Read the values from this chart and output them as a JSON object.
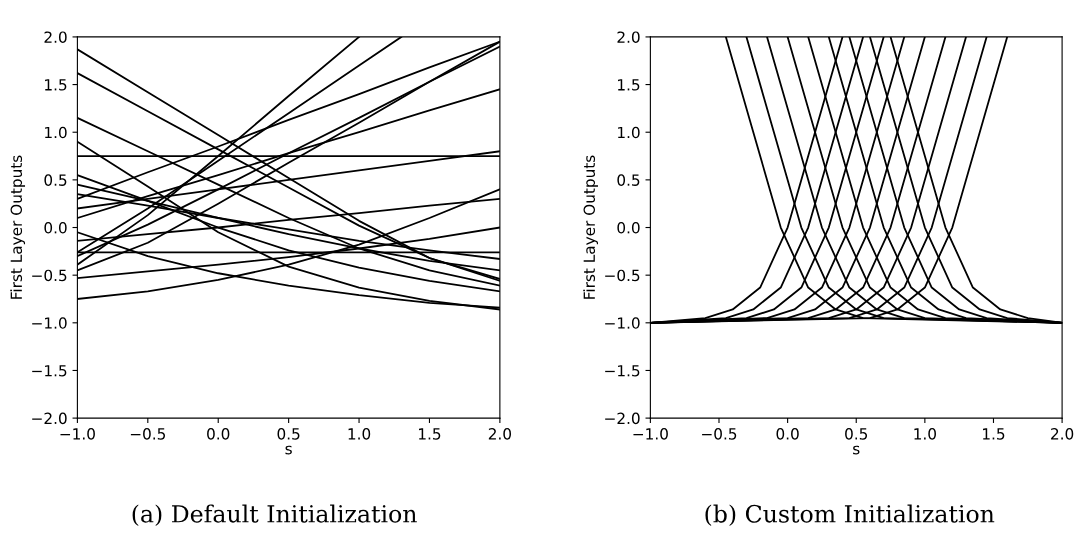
{
  "chart_data": [
    {
      "type": "line",
      "title": "(a) Default Initialization",
      "xlabel": "s",
      "ylabel": "First Layer Outputs",
      "grid": false,
      "marker": "none",
      "line_style": "solid",
      "xlim": [
        -1.0,
        2.0
      ],
      "ylim": [
        -2.0,
        2.0
      ],
      "xticks": [
        {
          "value": -1.0,
          "label": "−1.0"
        },
        {
          "value": -0.5,
          "label": "−0.5"
        },
        {
          "value": 0.0,
          "label": "0.0"
        },
        {
          "value": 0.5,
          "label": "0.5"
        },
        {
          "value": 1.0,
          "label": "1.0"
        },
        {
          "value": 1.5,
          "label": "1.5"
        },
        {
          "value": 2.0,
          "label": "2.0"
        }
      ],
      "yticks": [
        {
          "value": -2.0,
          "label": "−2.0"
        },
        {
          "value": -1.5,
          "label": "−1.5"
        },
        {
          "value": -1.0,
          "label": "−1.0"
        },
        {
          "value": -0.5,
          "label": "−0.5"
        },
        {
          "value": 0.0,
          "label": "0.0"
        },
        {
          "value": 0.5,
          "label": "0.5"
        },
        {
          "value": 1.0,
          "label": "1.0"
        },
        {
          "value": 1.5,
          "label": "1.5"
        },
        {
          "value": 2.0,
          "label": "2.0"
        }
      ],
      "series": [
        {
          "color": "#000000",
          "x": [
            -1,
            -0.5,
            0,
            0.5,
            1,
            1.5,
            2
          ],
          "values": [
            1.87,
            1.42,
            0.97,
            0.52,
            0.07,
            -0.32,
            -0.56
          ]
        },
        {
          "color": "#000000",
          "x": [
            -1,
            -0.5,
            0,
            0.5,
            1,
            1.3
          ],
          "values": [
            -0.26,
            0.2,
            0.7,
            1.2,
            1.7,
            2.0
          ]
        },
        {
          "color": "#000000",
          "x": [
            -1,
            -0.5,
            0,
            0.5,
            1,
            1.5,
            2
          ],
          "values": [
            1.62,
            1.22,
            0.82,
            0.42,
            0.02,
            -0.32,
            -0.54
          ]
        },
        {
          "color": "#000000",
          "x": [
            -1,
            -0.5,
            0,
            0.5,
            1,
            1.5,
            2
          ],
          "values": [
            -0.45,
            -0.16,
            0.25,
            0.68,
            1.1,
            1.53,
            1.95
          ]
        },
        {
          "color": "#000000",
          "x": [
            -1,
            2
          ],
          "values": [
            0.75,
            0.75
          ]
        },
        {
          "color": "#000000",
          "x": [
            -1,
            2
          ],
          "values": [
            -0.26,
            -0.26
          ]
        },
        {
          "color": "#000000",
          "x": [
            -1,
            -0.5,
            0,
            0.5,
            1,
            1.5,
            2
          ],
          "values": [
            1.15,
            0.8,
            0.45,
            0.1,
            -0.22,
            -0.45,
            -0.61
          ]
        },
        {
          "color": "#000000",
          "x": [
            -1,
            -0.5,
            0,
            0.5,
            1,
            1.5,
            2
          ],
          "values": [
            0.9,
            0.43,
            -0.05,
            -0.41,
            -0.63,
            -0.77,
            -0.86
          ]
        },
        {
          "color": "#000000",
          "x": [
            -1,
            -0.5,
            0,
            0.5,
            1,
            1.5,
            2
          ],
          "values": [
            -0.53,
            -0.46,
            -0.39,
            -0.31,
            -0.22,
            -0.12,
            0.0
          ]
        },
        {
          "color": "#000000",
          "x": [
            -1,
            -0.5,
            0,
            0.5,
            1,
            1.5,
            2
          ],
          "values": [
            0.3,
            0.58,
            0.85,
            1.13,
            1.4,
            1.68,
            1.95
          ]
        },
        {
          "color": "#000000",
          "x": [
            -1,
            -0.5,
            0,
            0.5,
            1,
            1.5,
            2
          ],
          "values": [
            0.1,
            0.33,
            0.55,
            0.78,
            1.0,
            1.23,
            1.45
          ]
        },
        {
          "color": "#000000",
          "x": [
            -1,
            -0.5,
            0,
            0.5,
            1,
            1.5,
            2
          ],
          "values": [
            0.55,
            0.28,
            0.0,
            -0.24,
            -0.42,
            -0.56,
            -0.67
          ]
        },
        {
          "color": "#000000",
          "x": [
            -1,
            -0.5,
            0,
            0.5,
            1,
            1.5,
            2
          ],
          "values": [
            -0.14,
            -0.07,
            0.0,
            0.08,
            0.15,
            0.23,
            0.3
          ]
        },
        {
          "color": "#000000",
          "x": [
            -1,
            -0.5,
            0,
            0.5,
            1,
            1.5,
            2
          ],
          "values": [
            0.45,
            0.28,
            0.1,
            -0.07,
            -0.22,
            -0.35,
            -0.45
          ]
        },
        {
          "color": "#000000",
          "x": [
            -1,
            -0.5,
            0,
            0.5,
            1,
            1.5,
            2
          ],
          "values": [
            -0.75,
            -0.67,
            -0.55,
            -0.39,
            -0.18,
            0.1,
            0.4
          ]
        },
        {
          "color": "#000000",
          "x": [
            -1,
            -0.5,
            0,
            0.5,
            1,
            1.5,
            2
          ],
          "values": [
            -0.05,
            -0.3,
            -0.48,
            -0.61,
            -0.71,
            -0.79,
            -0.84
          ]
        },
        {
          "color": "#000000",
          "x": [
            -1,
            -0.5,
            0,
            0.5,
            1,
            1.5,
            2
          ],
          "values": [
            0.2,
            0.3,
            0.4,
            0.5,
            0.6,
            0.7,
            0.8
          ]
        },
        {
          "color": "#000000",
          "x": [
            -1,
            -0.5,
            0,
            0.5,
            1,
            1.5,
            2
          ],
          "values": [
            -0.3,
            0.03,
            0.4,
            0.78,
            1.15,
            1.53,
            1.9
          ]
        },
        {
          "color": "#000000",
          "x": [
            -1,
            -0.5,
            0,
            0.5,
            1
          ],
          "values": [
            -0.39,
            0.13,
            0.75,
            1.38,
            2.0
          ]
        },
        {
          "color": "#000000",
          "x": [
            -1,
            -0.5,
            0,
            0.5,
            1,
            1.5,
            2
          ],
          "values": [
            0.35,
            0.23,
            0.1,
            -0.02,
            -0.14,
            -0.24,
            -0.33
          ]
        }
      ]
    },
    {
      "type": "line",
      "title": "(b) Custom Initialization",
      "xlabel": "s",
      "ylabel": "First Layer Outputs",
      "grid": false,
      "marker": "none",
      "line_style": "solid",
      "xlim": [
        -1.0,
        2.0
      ],
      "ylim": [
        -2.0,
        2.0
      ],
      "xticks": [
        {
          "value": -1.0,
          "label": "−1.0"
        },
        {
          "value": -0.5,
          "label": "−0.5"
        },
        {
          "value": 0.0,
          "label": "0.0"
        },
        {
          "value": 0.5,
          "label": "0.5"
        },
        {
          "value": 1.0,
          "label": "1.0"
        },
        {
          "value": 1.5,
          "label": "1.5"
        },
        {
          "value": 2.0,
          "label": "2.0"
        }
      ],
      "yticks": [
        {
          "value": -2.0,
          "label": "−2.0"
        },
        {
          "value": -1.5,
          "label": "−1.5"
        },
        {
          "value": -1.0,
          "label": "−1.0"
        },
        {
          "value": -0.5,
          "label": "−0.5"
        },
        {
          "value": 0.0,
          "label": "0.0"
        },
        {
          "value": 0.5,
          "label": "0.5"
        },
        {
          "value": 1.0,
          "label": "1.0"
        },
        {
          "value": 1.5,
          "label": "1.5"
        },
        {
          "value": 2.0,
          "label": "2.0"
        }
      ],
      "series": [
        {
          "color": "#000000",
          "x": [
            -1,
            -0.6,
            -0.4,
            -0.2,
            0.0,
            0.2,
            0.4
          ],
          "values": [
            -1.0,
            -0.95,
            -0.86,
            -0.63,
            0,
            1,
            2
          ]
        },
        {
          "color": "#000000",
          "x": [
            -1,
            -0.45,
            -0.25,
            -0.05,
            0.15,
            0.35,
            0.55
          ],
          "values": [
            -1.0,
            -0.95,
            -0.86,
            -0.63,
            0,
            1,
            2
          ]
        },
        {
          "color": "#000000",
          "x": [
            -1,
            -0.3,
            -0.1,
            0.1,
            0.3,
            0.5,
            0.7
          ],
          "values": [
            -1.0,
            -0.95,
            -0.86,
            -0.63,
            0,
            1,
            2
          ]
        },
        {
          "color": "#000000",
          "x": [
            -1,
            -0.15,
            0.05,
            0.25,
            0.45,
            0.65,
            0.85
          ],
          "values": [
            -1.0,
            -0.95,
            -0.86,
            -0.63,
            0,
            1,
            2
          ]
        },
        {
          "color": "#000000",
          "x": [
            -1,
            0.0,
            0.2,
            0.4,
            0.6,
            0.8,
            1.0
          ],
          "values": [
            -1.0,
            -0.95,
            -0.86,
            -0.63,
            0,
            1,
            2
          ]
        },
        {
          "color": "#000000",
          "x": [
            -1,
            0.15,
            0.35,
            0.55,
            0.75,
            0.95,
            1.15
          ],
          "values": [
            -1.0,
            -0.95,
            -0.86,
            -0.63,
            0,
            1,
            2
          ]
        },
        {
          "color": "#000000",
          "x": [
            -1,
            0.3,
            0.5,
            0.7,
            0.9,
            1.1,
            1.3
          ],
          "values": [
            -1.0,
            -0.95,
            -0.86,
            -0.63,
            0,
            1,
            2
          ]
        },
        {
          "color": "#000000",
          "x": [
            -1,
            0.45,
            0.65,
            0.85,
            1.05,
            1.25,
            1.45
          ],
          "values": [
            -1.0,
            -0.95,
            -0.86,
            -0.63,
            0,
            1,
            2
          ]
        },
        {
          "color": "#000000",
          "x": [
            -1,
            0.6,
            0.8,
            1.0,
            1.2,
            1.4,
            1.6
          ],
          "values": [
            -1.0,
            -0.95,
            -0.86,
            -0.63,
            0,
            1,
            2
          ]
        },
        {
          "color": "#000000",
          "x": [
            -0.45,
            -0.25,
            -0.05,
            0.15,
            0.35,
            0.55,
            2
          ],
          "values": [
            2,
            1,
            0,
            -0.63,
            -0.86,
            -0.95,
            -1.0
          ]
        },
        {
          "color": "#000000",
          "x": [
            -0.3,
            -0.1,
            0.1,
            0.3,
            0.5,
            0.7,
            2
          ],
          "values": [
            2,
            1,
            0,
            -0.63,
            -0.86,
            -0.95,
            -1.0
          ]
        },
        {
          "color": "#000000",
          "x": [
            -0.15,
            0.05,
            0.25,
            0.45,
            0.65,
            0.85,
            2
          ],
          "values": [
            2,
            1,
            0,
            -0.63,
            -0.86,
            -0.95,
            -1.0
          ]
        },
        {
          "color": "#000000",
          "x": [
            0.0,
            0.2,
            0.4,
            0.6,
            0.8,
            1.0,
            2
          ],
          "values": [
            2,
            1,
            0,
            -0.63,
            -0.86,
            -0.95,
            -1.0
          ]
        },
        {
          "color": "#000000",
          "x": [
            0.15,
            0.35,
            0.55,
            0.75,
            0.95,
            1.15,
            2
          ],
          "values": [
            2,
            1,
            0,
            -0.63,
            -0.86,
            -0.95,
            -1.0
          ]
        },
        {
          "color": "#000000",
          "x": [
            0.3,
            0.5,
            0.7,
            0.9,
            1.1,
            1.3,
            2
          ],
          "values": [
            2,
            1,
            0,
            -0.63,
            -0.86,
            -0.95,
            -1.0
          ]
        },
        {
          "color": "#000000",
          "x": [
            0.45,
            0.65,
            0.85,
            1.05,
            1.25,
            1.45,
            2
          ],
          "values": [
            2,
            1,
            0,
            -0.63,
            -0.86,
            -0.95,
            -1.0
          ]
        },
        {
          "color": "#000000",
          "x": [
            0.6,
            0.8,
            1.0,
            1.2,
            1.4,
            1.6,
            2
          ],
          "values": [
            2,
            1,
            0,
            -0.63,
            -0.86,
            -0.95,
            -1.0
          ]
        },
        {
          "color": "#000000",
          "x": [
            0.75,
            0.95,
            1.15,
            1.35,
            1.55,
            1.75,
            2
          ],
          "values": [
            2,
            1,
            0,
            -0.63,
            -0.86,
            -0.95,
            -1.0
          ]
        }
      ]
    }
  ]
}
